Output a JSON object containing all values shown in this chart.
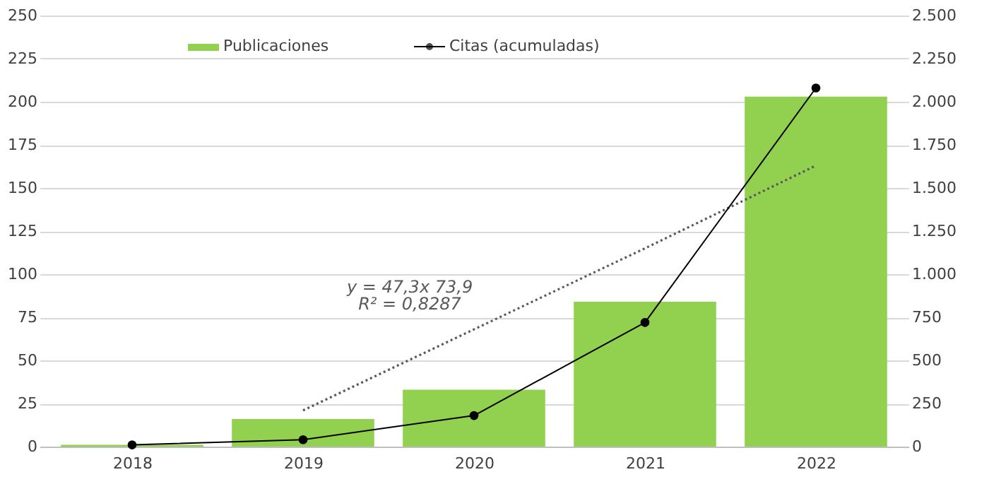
{
  "chart_data": {
    "type": "bar",
    "categories": [
      "2018",
      "2019",
      "2020",
      "2021",
      "2022"
    ],
    "series": [
      {
        "name": "Publicaciones",
        "color": "#92d050",
        "values": [
          1,
          16,
          33,
          84,
          203
        ]
      },
      {
        "name": "Citas (acumuladas)",
        "type": "line",
        "axis": "y2",
        "color": "#000000",
        "marker": "circle",
        "line_style": "solid",
        "values": [
          10,
          40,
          180,
          720,
          2080
        ]
      },
      {
        "type": "line",
        "color": "#595959",
        "line_style": "dotted",
        "marker": "none",
        "values": [
          null,
          21,
          68,
          115,
          163
        ]
      }
    ],
    "ylim": [
      0,
      250
    ],
    "yticks": [
      0,
      25,
      50,
      75,
      100,
      125,
      150,
      175,
      200,
      225,
      250
    ],
    "y2lim": [
      0,
      2500
    ],
    "y2ticks": [
      0,
      {
        "value": 250,
        "label": "250"
      },
      {
        "value": 500,
        "label": "500"
      },
      {
        "value": 750,
        "label": "750"
      },
      {
        "value": 1000,
        "label": "1.000"
      },
      {
        "value": 1250,
        "label": "1.250"
      },
      {
        "value": 1500,
        "label": "1.500"
      },
      {
        "value": 1750,
        "label": "1.750"
      },
      {
        "value": 2000,
        "label": "2.000"
      },
      {
        "value": 2250,
        "label": "2.250"
      },
      {
        "value": 2500,
        "label": "2.500"
      }
    ],
    "grid": "y",
    "legend": "top left",
    "annotations": [
      "y = 47,3x 73,9",
      "R² = 0,8287"
    ]
  }
}
